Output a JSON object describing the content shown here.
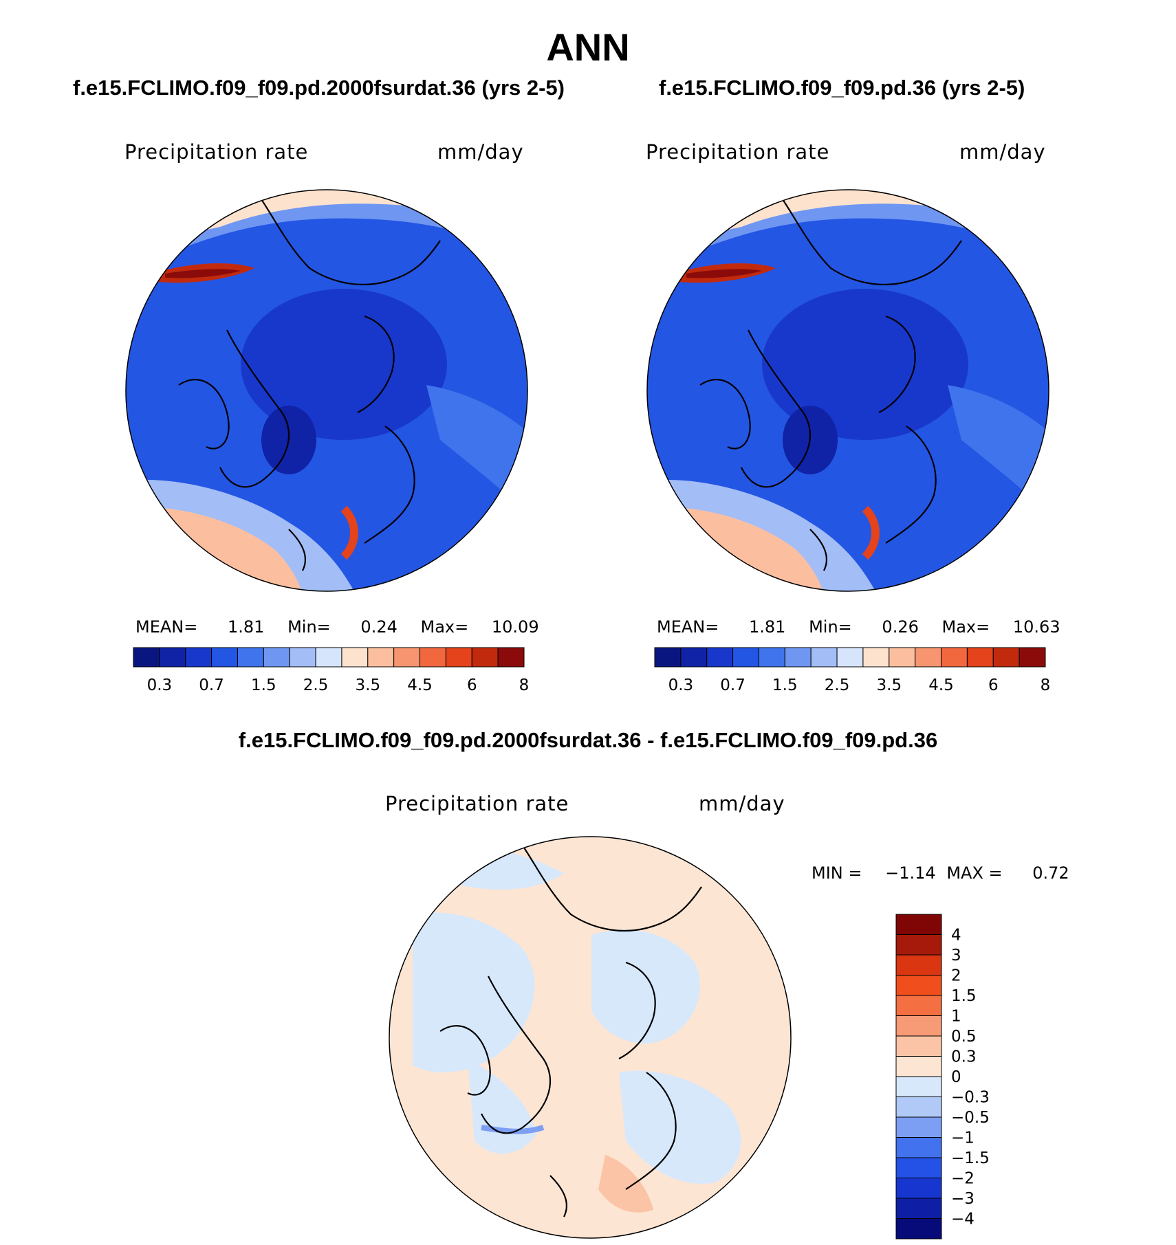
{
  "page_title": "ANN",
  "panels": [
    {
      "case": "f.e15.FCLIMO.f09_f09.pd.2000fsurdat.36 (yrs 2-5)",
      "variable": "Precipitation rate",
      "units": "mm/day",
      "stats": {
        "mean_label": "MEAN=",
        "mean": "1.81",
        "min_label": "Min=",
        "min": "0.24",
        "max_label": "Max=",
        "max": "10.09"
      }
    },
    {
      "case": "f.e15.FCLIMO.f09_f09.pd.36 (yrs 2-5)",
      "variable": "Precipitation rate",
      "units": "mm/day",
      "stats": {
        "mean_label": "MEAN=",
        "mean": "1.81",
        "min_label": "Min=",
        "min": "0.26",
        "max_label": "Max=",
        "max": "10.63"
      }
    }
  ],
  "difference": {
    "title": "f.e15.FCLIMO.f09_f09.pd.2000fsurdat.36 - f.e15.FCLIMO.f09_f09.pd.36",
    "variable": "Precipitation rate",
    "units": "mm/day",
    "min_label": "MIN =",
    "min": "−1.14",
    "max_label": "MAX =",
    "max": "0.72"
  },
  "colorbar_field": {
    "colors": [
      "#0a1680",
      "#1023a6",
      "#1838cc",
      "#2456e4",
      "#3f74ec",
      "#6f97f1",
      "#a3bdf6",
      "#d6e5fb",
      "#fde2ce",
      "#fbbfa0",
      "#f6956f",
      "#f1683f",
      "#e4431c",
      "#c22a0e",
      "#8b0b0b"
    ],
    "labels": [
      "0.3",
      "0.7",
      "1.5",
      "2.5",
      "3.5",
      "4.5",
      "6",
      "8"
    ]
  },
  "colorbar_diff": {
    "colors": [
      "#070b7a",
      "#0e1fa6",
      "#1636cf",
      "#2452e6",
      "#4272ee",
      "#7c9ff3",
      "#b0c9f7",
      "#d8e8fb",
      "#fde5d3",
      "#fbc4a6",
      "#f79b76",
      "#f47042",
      "#f04f1d",
      "#d93611",
      "#a51a0a",
      "#800606"
    ],
    "labels": [
      "−4",
      "−3",
      "−2",
      "−1.5",
      "−1",
      "−0.5",
      "−0.3",
      "0",
      "0.3",
      "0.5",
      "1",
      "1.5",
      "2",
      "3",
      "4"
    ]
  }
}
